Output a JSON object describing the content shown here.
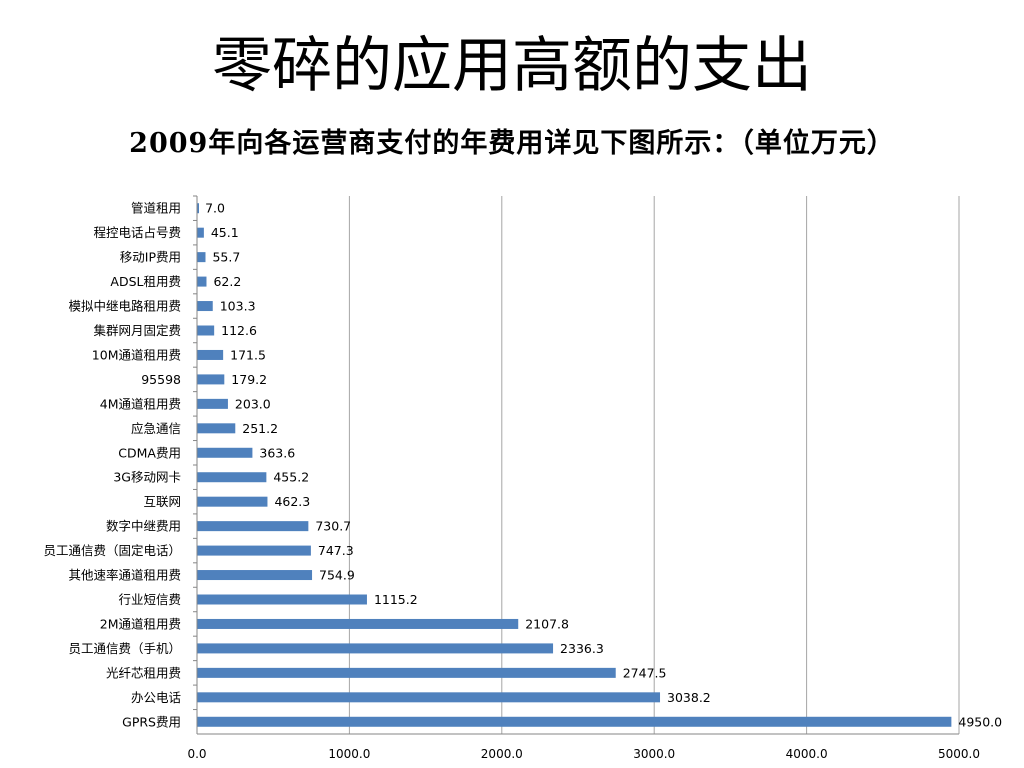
{
  "title": "零碎的应用高额的支出",
  "subtitle": "2009年向各运营商支付的年费用详见下图所示：（单位万元）",
  "colors": {
    "bar": "#4F81BD",
    "grid": "#A6A6A6",
    "axis": "#868686"
  },
  "chart_data": {
    "type": "bar",
    "orientation": "horizontal",
    "categories": [
      "管道租用",
      "程控电话占号费",
      "移动IP费用",
      "ADSL租用费",
      "模拟中继电路租用费",
      "集群网月固定费",
      "10M通道租用费",
      "95598",
      "4M通道租用费",
      "应急通信",
      "CDMA费用",
      "3G移动网卡",
      "互联网",
      "数字中继费用",
      "员工通信费（固定电话）",
      "其他速率通道租用费",
      "行业短信费",
      "2M通道租用费",
      "员工通信费（手机）",
      "光纤芯租用费",
      "办公电话",
      "GPRS费用"
    ],
    "values": [
      7.0,
      45.1,
      55.7,
      62.2,
      103.3,
      112.6,
      171.5,
      179.2,
      203.0,
      251.2,
      363.6,
      455.2,
      462.3,
      730.7,
      747.3,
      754.9,
      1115.2,
      2107.8,
      2336.3,
      2747.5,
      3038.2,
      4950.0
    ],
    "value_labels": [
      "7.0",
      "45.1",
      "55.7",
      "62.2",
      "103.3",
      "112.6",
      "171.5",
      "179.2",
      "203.0",
      "251.2",
      "363.6",
      "455.2",
      "462.3",
      "730.7",
      "747.3",
      "754.9",
      "1115.2",
      "2107.8",
      "2336.3",
      "2747.5",
      "3038.2",
      "4950.0"
    ],
    "xlim": [
      0,
      5000
    ],
    "ticks": [
      0,
      1000,
      2000,
      3000,
      4000,
      5000
    ],
    "tick_labels": [
      "0.0",
      "1000.0",
      "2000.0",
      "3000.0",
      "4000.0",
      "5000.0"
    ],
    "grid": true,
    "legend": "none"
  }
}
